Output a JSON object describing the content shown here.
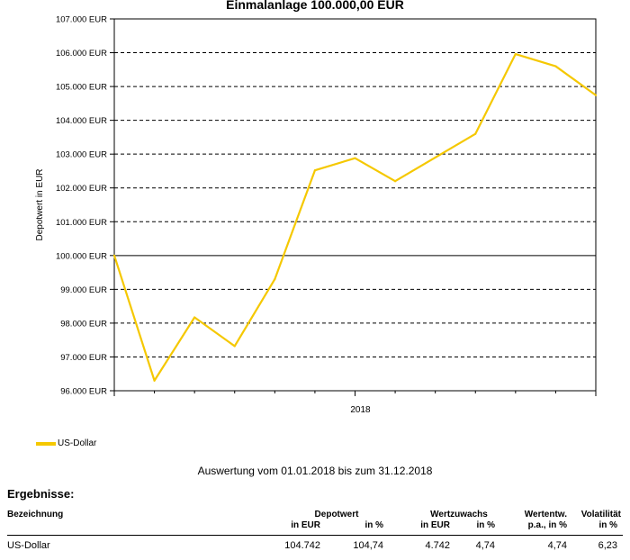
{
  "chart_data": {
    "type": "line",
    "title": "Einmalanlage 100.000,00 EUR",
    "ylabel": "Depotwert in EUR",
    "xlabel": "",
    "ylim": [
      96000,
      107000
    ],
    "yticks": [
      96000,
      97000,
      98000,
      99000,
      100000,
      101000,
      102000,
      103000,
      104000,
      105000,
      106000,
      107000
    ],
    "ytick_labels": [
      "96.000 EUR",
      "97.000 EUR",
      "98.000 EUR",
      "99.000 EUR",
      "100.000 EUR",
      "101.000 EUR",
      "102.000 EUR",
      "103.000 EUR",
      "104.000 EUR",
      "105.000 EUR",
      "106.000 EUR",
      "107.000 EUR"
    ],
    "x_tick_label": "2018",
    "x": [
      "2018-01-01",
      "2018-01-31",
      "2018-02-28",
      "2018-03-31",
      "2018-04-30",
      "2018-05-31",
      "2018-06-30",
      "2018-07-31",
      "2018-08-31",
      "2018-09-30",
      "2018-10-31",
      "2018-11-30",
      "2018-12-31"
    ],
    "series": [
      {
        "name": "US-Dollar",
        "color": "#f5c800",
        "values": [
          100000,
          96300,
          98170,
          97320,
          99300,
          102520,
          102880,
          102200,
          102900,
          103600,
          105960,
          105600,
          104742
        ]
      }
    ],
    "grid": "horizontal dashed",
    "legend": "bottom-left"
  },
  "evaluation_text": "Auswertung vom 01.01.2018 bis zum 31.12.2018",
  "results": {
    "heading": "Ergebnisse:",
    "headers": {
      "bezeichnung": "Bezeichnung",
      "depotwert": "Depotwert",
      "depotwert_eur": "in EUR",
      "depotwert_pct": "in %",
      "wertzuwachs": "Wertzuwachs",
      "wertzuwachs_eur": "in EUR",
      "wertzuwachs_pct": "in %",
      "wertentw_1": "Wertentw.",
      "wertentw_2": "p.a., in %",
      "volatilitaet_1": "Volatilität",
      "volatilitaet_2": "in %"
    },
    "rows": [
      {
        "bezeichnung": "US-Dollar",
        "depotwert_eur": "104.742",
        "depotwert_pct": "104,74",
        "wertzuwachs_eur": "4.742",
        "wertzuwachs_pct": "4,74",
        "wertentw": "4,74",
        "volatilitaet": "6,23"
      }
    ]
  }
}
